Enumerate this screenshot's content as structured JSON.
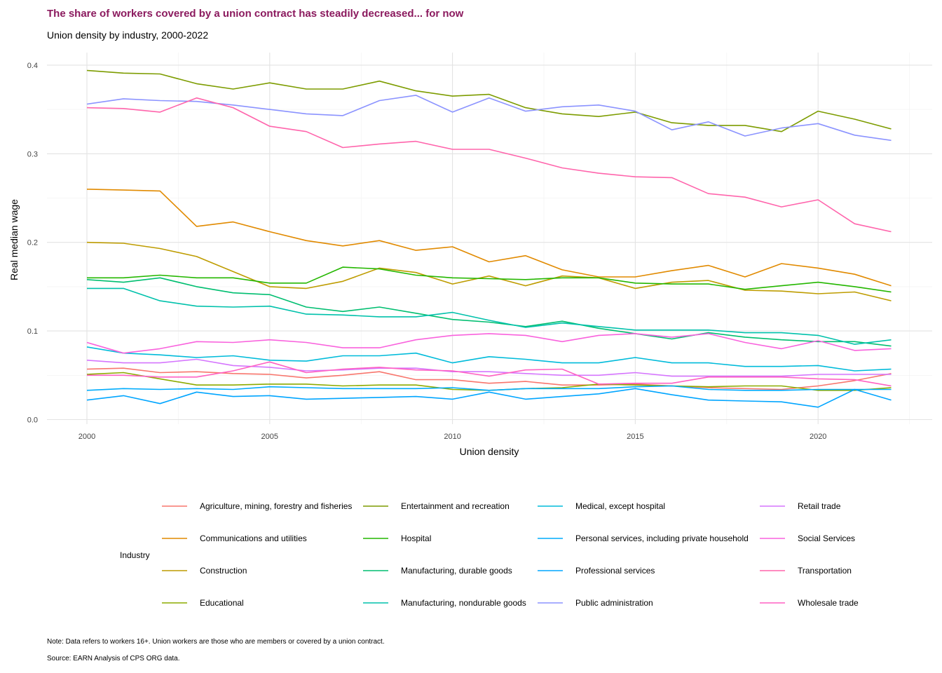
{
  "chart_data": {
    "type": "line",
    "title": "The share of workers covered by a union contract has steadily decreased... for now",
    "subtitle": "Union density by industry, 2000-2022",
    "xlabel": "Union density",
    "ylabel": "Real median wage",
    "xlim": [
      1999,
      2023
    ],
    "ylim": [
      0,
      0.41
    ],
    "x_ticks": [
      2000,
      2005,
      2010,
      2015,
      2020
    ],
    "y_ticks": [
      0.0,
      0.1,
      0.2,
      0.3,
      0.4
    ],
    "x_tick_labels": [
      "2000",
      "2005",
      "2010",
      "2015",
      "2020"
    ],
    "y_tick_labels": [
      "0.0",
      "0.1",
      "0.2",
      "0.3",
      "0.4"
    ],
    "grid": true,
    "legend_title": "Industry",
    "legend_position": "bottom",
    "x": [
      2000,
      2001,
      2002,
      2003,
      2004,
      2005,
      2006,
      2007,
      2008,
      2009,
      2010,
      2011,
      2012,
      2013,
      2014,
      2015,
      2016,
      2017,
      2018,
      2019,
      2020,
      2021,
      2022
    ],
    "series": [
      {
        "name": "Agriculture, mining, forestry and fisheries",
        "color": "#F8766D",
        "values": [
          0.057,
          0.058,
          0.053,
          0.054,
          0.052,
          0.051,
          0.047,
          0.05,
          0.054,
          0.045,
          0.045,
          0.041,
          0.043,
          0.039,
          0.039,
          0.04,
          0.038,
          0.036,
          0.035,
          0.034,
          0.038,
          0.044,
          0.052
        ]
      },
      {
        "name": "Communications and utilities",
        "color": "#E18A00",
        "values": [
          0.26,
          0.259,
          0.258,
          0.218,
          0.223,
          0.212,
          0.202,
          0.196,
          0.202,
          0.191,
          0.195,
          0.178,
          0.185,
          0.169,
          0.161,
          0.161,
          0.168,
          0.174,
          0.161,
          0.176,
          0.171,
          0.164,
          0.151
        ]
      },
      {
        "name": "Construction",
        "color": "#BE9C00",
        "values": [
          0.2,
          0.199,
          0.193,
          0.184,
          0.167,
          0.15,
          0.148,
          0.156,
          0.171,
          0.166,
          0.153,
          0.162,
          0.151,
          0.162,
          0.16,
          0.148,
          0.155,
          0.157,
          0.146,
          0.145,
          0.142,
          0.144,
          0.134
        ]
      },
      {
        "name": "Educational",
        "color": "#8CAB00",
        "values": [
          0.051,
          0.053,
          0.046,
          0.039,
          0.039,
          0.04,
          0.04,
          0.038,
          0.039,
          0.039,
          0.034,
          0.033,
          0.035,
          0.036,
          0.04,
          0.039,
          0.038,
          0.037,
          0.038,
          0.038,
          0.033,
          0.033,
          0.036
        ]
      },
      {
        "name": "Entertainment and recreation",
        "color": "#7D9C00",
        "values": [
          0.394,
          0.391,
          0.39,
          0.379,
          0.373,
          0.38,
          0.373,
          0.373,
          0.382,
          0.371,
          0.365,
          0.367,
          0.352,
          0.345,
          0.342,
          0.347,
          0.335,
          0.332,
          0.332,
          0.325,
          0.348,
          0.339,
          0.328
        ]
      },
      {
        "name": "Hospital",
        "color": "#24B700",
        "values": [
          0.16,
          0.16,
          0.163,
          0.16,
          0.16,
          0.154,
          0.154,
          0.172,
          0.17,
          0.163,
          0.16,
          0.159,
          0.158,
          0.16,
          0.16,
          0.154,
          0.153,
          0.153,
          0.147,
          0.151,
          0.155,
          0.15,
          0.144
        ]
      },
      {
        "name": "Manufacturing, durable goods",
        "color": "#00BE70",
        "values": [
          0.158,
          0.155,
          0.16,
          0.15,
          0.143,
          0.141,
          0.127,
          0.122,
          0.127,
          0.12,
          0.113,
          0.11,
          0.105,
          0.111,
          0.103,
          0.097,
          0.091,
          0.098,
          0.093,
          0.09,
          0.088,
          0.088,
          0.083
        ]
      },
      {
        "name": "Manufacturing, nondurable goods",
        "color": "#00C1AB",
        "values": [
          0.148,
          0.148,
          0.134,
          0.128,
          0.127,
          0.128,
          0.119,
          0.118,
          0.116,
          0.116,
          0.121,
          0.112,
          0.104,
          0.109,
          0.105,
          0.101,
          0.101,
          0.101,
          0.098,
          0.098,
          0.095,
          0.085,
          0.09
        ]
      },
      {
        "name": "Medical, except hospital",
        "color": "#00BBDA",
        "values": [
          0.082,
          0.075,
          0.073,
          0.07,
          0.072,
          0.067,
          0.066,
          0.072,
          0.072,
          0.075,
          0.064,
          0.071,
          0.068,
          0.064,
          0.064,
          0.07,
          0.064,
          0.064,
          0.06,
          0.06,
          0.061,
          0.055,
          0.057
        ]
      },
      {
        "name": "Personal services, including private household",
        "color": "#00ACFC",
        "values": [
          0.033,
          0.035,
          0.034,
          0.035,
          0.034,
          0.037,
          0.036,
          0.035,
          0.035,
          0.035,
          0.036,
          0.033,
          0.035,
          0.035,
          0.035,
          0.037,
          0.038,
          0.034,
          0.033,
          0.033,
          0.034,
          0.034,
          0.034
        ]
      },
      {
        "name": "Professional services",
        "color": "#00A5FF",
        "values": [
          0.022,
          0.027,
          0.018,
          0.031,
          0.026,
          0.027,
          0.023,
          0.024,
          0.025,
          0.026,
          0.023,
          0.031,
          0.023,
          0.026,
          0.029,
          0.035,
          0.028,
          0.022,
          0.021,
          0.02,
          0.014,
          0.034,
          0.022
        ]
      },
      {
        "name": "Public administration",
        "color": "#8B93FF",
        "values": [
          0.356,
          0.362,
          0.36,
          0.359,
          0.355,
          0.35,
          0.345,
          0.343,
          0.36,
          0.366,
          0.347,
          0.363,
          0.348,
          0.353,
          0.355,
          0.348,
          0.327,
          0.336,
          0.32,
          0.329,
          0.334,
          0.321,
          0.315
        ]
      },
      {
        "name": "Retail trade",
        "color": "#D575FE",
        "values": [
          0.067,
          0.064,
          0.064,
          0.068,
          0.061,
          0.059,
          0.055,
          0.056,
          0.058,
          0.058,
          0.054,
          0.054,
          0.052,
          0.05,
          0.05,
          0.053,
          0.049,
          0.049,
          0.049,
          0.049,
          0.051,
          0.051,
          0.051
        ]
      },
      {
        "name": "Social Services",
        "color": "#F962DD",
        "values": [
          0.087,
          0.075,
          0.08,
          0.088,
          0.087,
          0.09,
          0.087,
          0.081,
          0.081,
          0.09,
          0.095,
          0.097,
          0.095,
          0.088,
          0.095,
          0.097,
          0.093,
          0.097,
          0.087,
          0.08,
          0.089,
          0.078,
          0.08
        ]
      },
      {
        "name": "Transportation",
        "color": "#FF65AC",
        "values": [
          0.352,
          0.351,
          0.347,
          0.363,
          0.352,
          0.331,
          0.325,
          0.307,
          0.311,
          0.314,
          0.305,
          0.305,
          0.295,
          0.284,
          0.278,
          0.274,
          0.273,
          0.255,
          0.251,
          0.24,
          0.248,
          0.221,
          0.212
        ]
      },
      {
        "name": "Wholesale trade",
        "color": "#FF61C3",
        "values": [
          0.05,
          0.05,
          0.048,
          0.048,
          0.055,
          0.065,
          0.053,
          0.057,
          0.059,
          0.056,
          0.055,
          0.049,
          0.056,
          0.057,
          0.04,
          0.041,
          0.041,
          0.048,
          0.048,
          0.048,
          0.046,
          0.045,
          0.038
        ]
      }
    ]
  },
  "note": "Note: Data refers to workers 16+. Union workers are those who are members or covered by a union contract.",
  "source": "Source: EARN Analysis of CPS ORG data."
}
